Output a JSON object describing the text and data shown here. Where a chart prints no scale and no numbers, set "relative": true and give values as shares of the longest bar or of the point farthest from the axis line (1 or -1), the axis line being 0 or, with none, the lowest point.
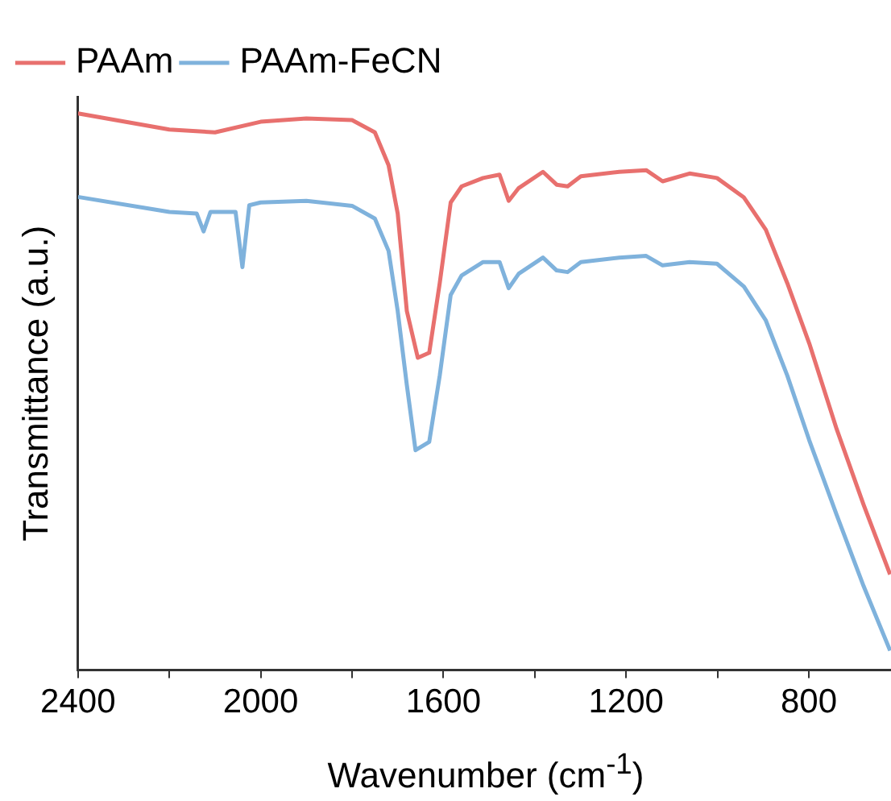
{
  "chart_data": {
    "type": "line",
    "xlabel": "Wavenumber (cm$^{-1}$)",
    "ylabel": "Transmittance (a.u.)",
    "relative": true,
    "xlim": [
      2400,
      620
    ],
    "xticks": [
      2400,
      {
        "value": 2200,
        "label": null
      },
      2000,
      {
        "value": 1800,
        "label": null
      },
      1600,
      {
        "value": 1400,
        "label": null
      },
      1200,
      {
        "value": 1000,
        "label": null
      },
      800
    ],
    "legend": "top left",
    "grid": false,
    "marker": "none",
    "line_style": "solid",
    "series": [
      {
        "name": "PAAm",
        "color": "#e8706e",
        "x": [
          2400,
          2200,
          2100,
          2000,
          1900,
          1800,
          1750,
          1720,
          1700,
          1680,
          1656,
          1631,
          1608,
          1584,
          1560,
          1513,
          1477,
          1457,
          1435,
          1382,
          1352,
          1328,
          1299,
          1215,
          1156,
          1120,
          1061,
          1001,
          942,
          894,
          847,
          799,
          739,
          680,
          622
        ],
        "values": [
          1.0,
          0.971,
          0.966,
          0.985,
          0.991,
          0.988,
          0.966,
          0.907,
          0.82,
          0.645,
          0.561,
          0.57,
          0.695,
          0.84,
          0.869,
          0.884,
          0.89,
          0.843,
          0.866,
          0.895,
          0.872,
          0.869,
          0.887,
          0.895,
          0.898,
          0.878,
          0.892,
          0.884,
          0.849,
          0.791,
          0.695,
          0.587,
          0.433,
          0.297,
          0.172
        ]
      },
      {
        "name": "PAAm-FeCN",
        "color": "#7fb2dc",
        "x": [
          2400,
          2200,
          2140,
          2125,
          2110,
          2080,
          2055,
          2040,
          2025,
          2000,
          1900,
          1800,
          1750,
          1720,
          1700,
          1680,
          1661,
          1631,
          1608,
          1584,
          1560,
          1513,
          1477,
          1457,
          1435,
          1382,
          1352,
          1328,
          1299,
          1215,
          1156,
          1120,
          1061,
          1001,
          942,
          894,
          847,
          799,
          739,
          680,
          622
        ],
        "values": [
          0.85,
          0.823,
          0.82,
          0.788,
          0.823,
          0.823,
          0.823,
          0.724,
          0.835,
          0.84,
          0.843,
          0.834,
          0.811,
          0.753,
          0.645,
          0.512,
          0.395,
          0.41,
          0.529,
          0.674,
          0.709,
          0.733,
          0.733,
          0.686,
          0.712,
          0.741,
          0.718,
          0.715,
          0.733,
          0.741,
          0.744,
          0.727,
          0.733,
          0.73,
          0.689,
          0.628,
          0.529,
          0.413,
          0.279,
          0.151,
          0.035
        ]
      }
    ]
  }
}
